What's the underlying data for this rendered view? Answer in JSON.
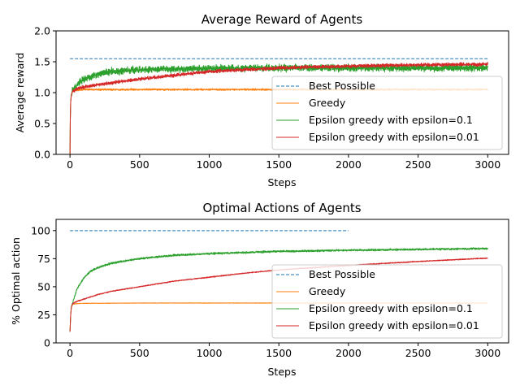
{
  "chart_data": [
    {
      "type": "line",
      "title": "Average Reward of Agents",
      "xlabel": "Steps",
      "ylabel": "Average reward",
      "xlim": [
        -100,
        3150
      ],
      "ylim": [
        0.0,
        2.0
      ],
      "xticks": [
        0,
        500,
        1000,
        1500,
        2000,
        2500,
        3000
      ],
      "yticks": [
        0.0,
        0.5,
        1.0,
        1.5,
        2.0
      ],
      "ytick_labels": [
        "0.0",
        "0.5",
        "1.0",
        "1.5",
        "2.0"
      ],
      "grid": false,
      "legend_position": "lower-right",
      "noise": [
        0,
        0.012,
        0.045,
        0.022
      ],
      "series": [
        {
          "name": "Best Possible",
          "color": "#1f77b4",
          "style": "dashed",
          "x": [
            0,
            3000
          ],
          "y": [
            1.55,
            1.55
          ]
        },
        {
          "name": "Greedy",
          "color": "#ff7f0e",
          "style": "solid",
          "x": [
            0,
            2,
            5,
            10,
            20,
            40,
            100,
            500,
            1000,
            1500,
            2000,
            2500,
            3000
          ],
          "y": [
            0.0,
            0.55,
            0.85,
            0.97,
            1.03,
            1.04,
            1.05,
            1.05,
            1.05,
            1.05,
            1.05,
            1.05,
            1.05
          ]
        },
        {
          "name": "Epsilon greedy with epsilon=0.1",
          "color": "#2ca02c",
          "style": "solid",
          "x": [
            0,
            2,
            5,
            10,
            20,
            50,
            100,
            200,
            300,
            500,
            700,
            1000,
            1500,
            2000,
            2500,
            3000
          ],
          "y": [
            0.0,
            0.55,
            0.85,
            0.97,
            1.05,
            1.13,
            1.22,
            1.3,
            1.34,
            1.37,
            1.38,
            1.39,
            1.4,
            1.4,
            1.4,
            1.4
          ]
        },
        {
          "name": "Epsilon greedy with epsilon=0.01",
          "color": "#d62728",
          "style": "solid",
          "x": [
            0,
            2,
            5,
            10,
            20,
            50,
            100,
            200,
            300,
            500,
            700,
            1000,
            1500,
            2000,
            2500,
            3000
          ],
          "y": [
            0.0,
            0.55,
            0.85,
            0.97,
            1.02,
            1.06,
            1.09,
            1.13,
            1.16,
            1.22,
            1.27,
            1.34,
            1.4,
            1.43,
            1.45,
            1.46
          ]
        }
      ]
    },
    {
      "type": "line",
      "title": "Optimal Actions of Agents",
      "xlabel": "Steps",
      "ylabel": "% Optimal action",
      "xlim": [
        -100,
        3150
      ],
      "ylim": [
        0,
        110
      ],
      "xticks": [
        0,
        500,
        1000,
        1500,
        2000,
        2500,
        3000
      ],
      "yticks": [
        0,
        25,
        50,
        75,
        100
      ],
      "ytick_labels": [
        "0",
        "25",
        "50",
        "75",
        "100"
      ],
      "grid": false,
      "legend_position": "lower-right",
      "noise": [
        0,
        0.15,
        0.7,
        0.35
      ],
      "series": [
        {
          "name": "Best Possible",
          "color": "#1f77b4",
          "style": "dashed",
          "x": [
            0,
            2000
          ],
          "y": [
            100,
            100
          ]
        },
        {
          "name": "Greedy",
          "color": "#ff7f0e",
          "style": "solid",
          "x": [
            0,
            5,
            10,
            20,
            50,
            100,
            500,
            1000,
            1500,
            2000,
            2500,
            3000
          ],
          "y": [
            10,
            25,
            32,
            34.5,
            35,
            35.2,
            35.5,
            35.5,
            35.5,
            35.5,
            35.5,
            35.5
          ]
        },
        {
          "name": "Epsilon greedy with epsilon=0.1",
          "color": "#2ca02c",
          "style": "solid",
          "x": [
            0,
            5,
            10,
            20,
            50,
            100,
            150,
            200,
            300,
            500,
            750,
            1000,
            1500,
            2000,
            2500,
            3000
          ],
          "y": [
            10,
            25,
            32,
            36,
            48,
            58,
            64,
            67,
            71,
            75,
            78,
            79.5,
            81.5,
            82.5,
            83.3,
            84
          ]
        },
        {
          "name": "Epsilon greedy with epsilon=0.01",
          "color": "#d62728",
          "style": "solid",
          "x": [
            0,
            5,
            10,
            20,
            50,
            100,
            200,
            300,
            500,
            750,
            1000,
            1250,
            1500,
            2000,
            2500,
            3000
          ],
          "y": [
            10,
            25,
            32,
            35,
            37,
            39,
            43,
            46,
            50,
            55,
            58.5,
            62,
            65,
            69,
            72.5,
            75.5
          ]
        }
      ]
    }
  ]
}
